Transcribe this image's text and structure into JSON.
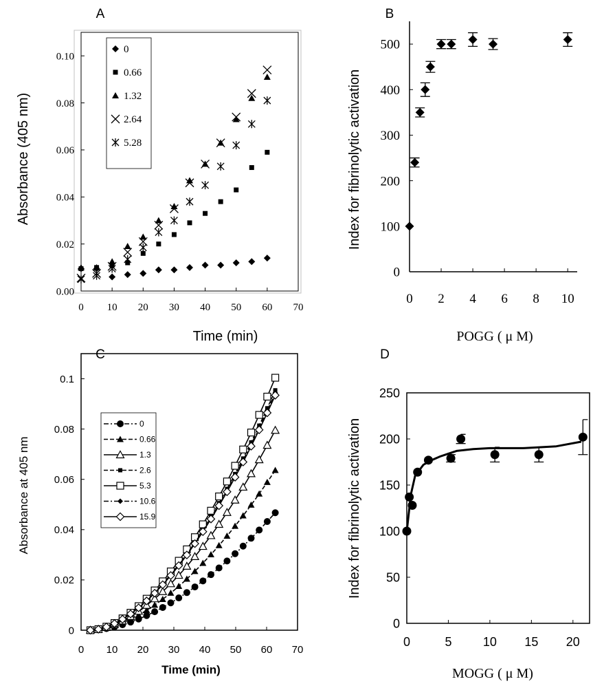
{
  "chart_data": [
    {
      "id": "A",
      "panel_label": "A",
      "type": "scatter",
      "title": "",
      "xlabel": "Time (min)",
      "ylabel": "Absorbance (405 nm)",
      "xlim": [
        0,
        70
      ],
      "ylim": [
        0,
        0.11
      ],
      "xticks": [
        0,
        10,
        20,
        30,
        40,
        50,
        60,
        70
      ],
      "xtick_labels": [
        "0",
        "10",
        "20",
        "30",
        "40",
        "50",
        "60",
        "70"
      ],
      "yticks": [
        0,
        0.02,
        0.04,
        0.06,
        0.08,
        0.1
      ],
      "ytick_labels": [
        "0.00",
        "0.02",
        "0.04",
        "0.06",
        "0.08",
        "0.10"
      ],
      "legend_position": "top-left",
      "x": [
        0,
        5,
        10,
        15,
        20,
        25,
        30,
        35,
        40,
        45,
        50,
        55,
        60
      ],
      "series": [
        {
          "name": "0",
          "marker": "diamond",
          "values": [
            0.0095,
            0.0095,
            0.006,
            0.007,
            0.0075,
            0.009,
            0.009,
            0.01,
            0.011,
            0.011,
            0.012,
            0.0125,
            0.014
          ]
        },
        {
          "name": "0.66",
          "marker": "square",
          "values": [
            0.0095,
            0.01,
            0.011,
            0.012,
            0.016,
            0.02,
            0.024,
            0.029,
            0.033,
            0.038,
            0.043,
            0.0525,
            0.059
          ]
        },
        {
          "name": "1.32",
          "marker": "triangle",
          "values": [
            0.01,
            0.01,
            0.0125,
            0.019,
            0.023,
            0.03,
            0.036,
            0.047,
            0.054,
            0.063,
            0.073,
            0.082,
            0.091
          ]
        },
        {
          "name": "2.64",
          "marker": "x",
          "values": [
            0.0055,
            0.0075,
            0.0105,
            0.0165,
            0.021,
            0.028,
            0.035,
            0.046,
            0.054,
            0.063,
            0.074,
            0.084,
            0.094
          ]
        },
        {
          "name": "5.28",
          "marker": "asterisk",
          "values": [
            0.005,
            0.0065,
            0.0095,
            0.0135,
            0.0185,
            0.025,
            0.03,
            0.038,
            0.045,
            0.053,
            0.062,
            0.071,
            0.081
          ]
        }
      ]
    },
    {
      "id": "B",
      "panel_label": "B",
      "type": "scatter",
      "title": "",
      "xlabel": "POGG ( μ M)",
      "ylabel": "Index for fibrinolytic activation",
      "xlim": [
        0,
        10.6
      ],
      "ylim": [
        0,
        550
      ],
      "xticks": [
        0,
        2,
        4,
        6,
        8,
        10
      ],
      "xtick_labels": [
        "0",
        "2",
        "4",
        "6",
        "8",
        "10"
      ],
      "yticks": [
        0,
        100,
        200,
        300,
        400,
        500
      ],
      "ytick_labels": [
        "0",
        "100",
        "200",
        "300",
        "400",
        "500"
      ],
      "series": [
        {
          "name": "POGG",
          "marker": "diamond",
          "x": [
            0,
            0.33,
            0.66,
            0.99,
            1.32,
            2.0,
            2.64,
            4.0,
            5.28,
            10.0
          ],
          "values": [
            100,
            240,
            350,
            400,
            450,
            500,
            500,
            510,
            500,
            510
          ],
          "errors": [
            0,
            10,
            10,
            15,
            12,
            10,
            10,
            15,
            12,
            15
          ]
        }
      ]
    },
    {
      "id": "C",
      "panel_label": "C",
      "type": "line",
      "title": "",
      "xlabel": "Time (min)",
      "ylabel": "Absorbance at 405 nm",
      "xlim": [
        0,
        70
      ],
      "ylim": [
        0,
        0.11
      ],
      "xticks": [
        0,
        10,
        20,
        30,
        40,
        50,
        60,
        70
      ],
      "xtick_labels": [
        "0",
        "10",
        "20",
        "30",
        "40",
        "50",
        "60",
        "70"
      ],
      "yticks": [
        0,
        0.02,
        0.04,
        0.06,
        0.08,
        0.1
      ],
      "ytick_labels": [
        "0",
        "0.02",
        "0.04",
        "0.06",
        "0.08",
        "0.1"
      ],
      "legend_position": "top-left",
      "series": [
        {
          "name": "0",
          "marker": "circle",
          "dash": "dashdot",
          "x": [
            3,
            63
          ],
          "values": [
            0,
            0.047
          ]
        },
        {
          "name": "0.66",
          "marker": "triangle",
          "dash": "dash",
          "x": [
            3,
            63
          ],
          "values": [
            0,
            0.064
          ]
        },
        {
          "name": "1.3",
          "marker": "triangle-open",
          "dash": "solid",
          "x": [
            3,
            63
          ],
          "values": [
            0,
            0.08
          ]
        },
        {
          "name": "2.6",
          "marker": "square-small",
          "dash": "dash",
          "x": [
            3,
            63
          ],
          "values": [
            0,
            0.096
          ]
        },
        {
          "name": "5.3",
          "marker": "square-open",
          "dash": "solid",
          "x": [
            3,
            63
          ],
          "values": [
            0,
            0.101
          ]
        },
        {
          "name": "10.6",
          "marker": "diamond-small",
          "dash": "dashdot",
          "x": [
            3,
            63
          ],
          "values": [
            0,
            0.095
          ]
        },
        {
          "name": "15.9",
          "marker": "diamond-open",
          "dash": "solid",
          "x": [
            3,
            63
          ],
          "values": [
            0,
            0.094
          ]
        }
      ]
    },
    {
      "id": "D",
      "panel_label": "D",
      "type": "scatter",
      "title": "",
      "xlabel": "MOGG ( μ M)",
      "ylabel": "Index for fibrinolytic activation",
      "xlim": [
        0,
        22
      ],
      "ylim": [
        0,
        250
      ],
      "xticks": [
        0,
        5,
        10,
        15,
        20
      ],
      "xtick_labels": [
        "0",
        "5",
        "10",
        "15",
        "20"
      ],
      "yticks": [
        0,
        50,
        100,
        150,
        200,
        250
      ],
      "ytick_labels": [
        "0",
        "50",
        "100",
        "150",
        "200",
        "250"
      ],
      "series": [
        {
          "name": "MOGG",
          "marker": "circle",
          "x": [
            0,
            0.3,
            0.66,
            1.3,
            2.6,
            5.3,
            6.5,
            10.6,
            15.9,
            21.2
          ],
          "values": [
            100,
            137,
            128,
            164,
            177,
            179,
            200,
            183,
            183,
            202
          ],
          "errors": [
            0,
            0,
            0,
            0,
            0,
            4,
            5,
            8,
            8,
            19
          ]
        },
        {
          "name": "fit",
          "marker": "none",
          "dash": "solid",
          "x": [
            0,
            0.5,
            1,
            2,
            3,
            4,
            5,
            6,
            8,
            10,
            14,
            18,
            21
          ],
          "values": [
            100,
            140,
            160,
            172,
            177,
            181,
            184,
            187,
            189,
            190,
            190,
            192,
            197
          ]
        }
      ]
    }
  ]
}
